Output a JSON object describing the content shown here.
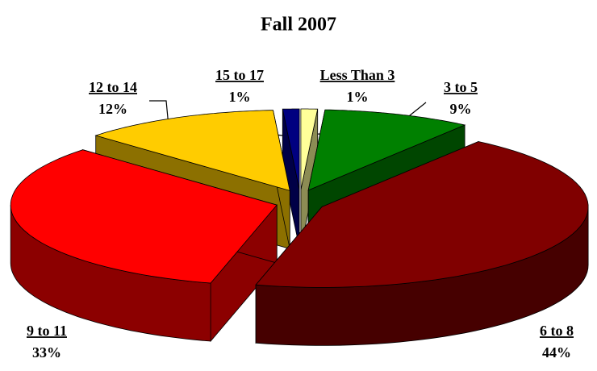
{
  "chart_data": {
    "type": "pie",
    "title": "Fall 2007",
    "categories": [
      "Less Than 3",
      "3 to 5",
      "6 to 8",
      "9 to 11",
      "12 to 14",
      "15 to 17"
    ],
    "values": [
      1,
      9,
      44,
      33,
      12,
      1
    ],
    "value_labels": [
      "1%",
      "9%",
      "44%",
      "33%",
      "12%",
      "1%"
    ],
    "colors": [
      "#FFFF99",
      "#008000",
      "#800000",
      "#FF0000",
      "#FFCC00",
      "#000080"
    ]
  }
}
